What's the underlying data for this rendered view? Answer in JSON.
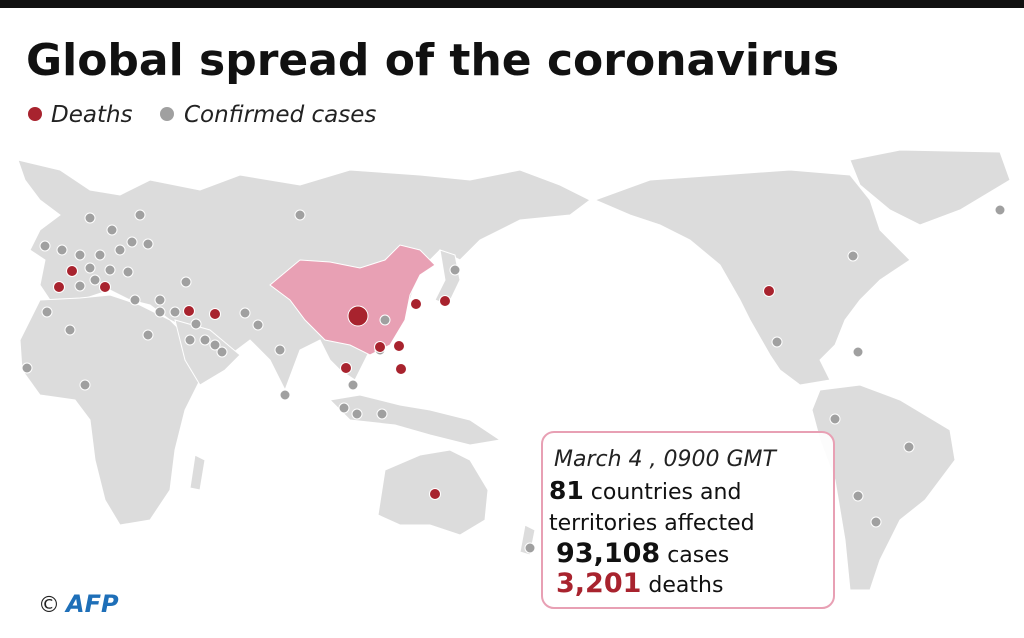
{
  "header": {
    "title": "Global spread of the coronavirus"
  },
  "legend": {
    "deaths": "Deaths",
    "cases": "Confirmed cases"
  },
  "infobox": {
    "date": "March 4 , 0900 GMT",
    "countries": "81",
    "countries_label_1": "countries and",
    "countries_label_2": "territories affected",
    "cases": "93,108",
    "cases_label": "cases",
    "deaths": "3,201",
    "deaths_label": "deaths"
  },
  "credit": {
    "copyright": "©",
    "agency": "AFP"
  }
}
